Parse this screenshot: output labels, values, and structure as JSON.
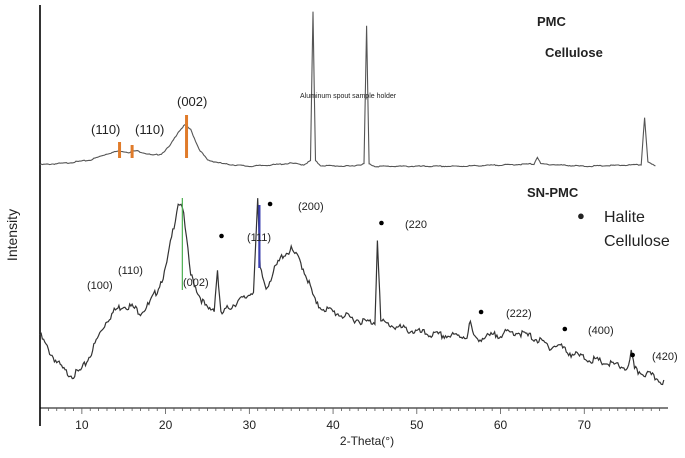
{
  "chart_data": {
    "type": "line",
    "xlabel": "2-Theta(°)",
    "ylabel": "Intensity",
    "xlim": [
      5,
      80
    ],
    "x_ticks": [
      10,
      20,
      30,
      40,
      50,
      60,
      70
    ],
    "series": [
      {
        "name": "PMC",
        "subtitle": "Cellulose",
        "points": [
          [
            5,
            -0.98
          ],
          [
            8,
            -0.96
          ],
          [
            11,
            -0.92
          ],
          [
            13,
            -0.84
          ],
          [
            14.5,
            -0.8
          ],
          [
            15,
            -0.81
          ],
          [
            15.6,
            -0.82
          ],
          [
            16.5,
            -0.8
          ],
          [
            17.5,
            -0.83
          ],
          [
            18.5,
            -0.86
          ],
          [
            19.5,
            -0.84
          ],
          [
            20.5,
            -0.74
          ],
          [
            21.5,
            -0.56
          ],
          [
            22.3,
            -0.47
          ],
          [
            23,
            -0.53
          ],
          [
            24,
            -0.78
          ],
          [
            25,
            -0.92
          ],
          [
            27,
            -0.97
          ],
          [
            30,
            -1.0
          ],
          [
            33,
            -0.98
          ],
          [
            35,
            -0.96
          ],
          [
            36.5,
            -0.98
          ],
          [
            37.3,
            -0.93
          ],
          [
            37.6,
            0.98
          ],
          [
            37.9,
            -0.93
          ],
          [
            38.5,
            -0.99
          ],
          [
            42,
            -1.0
          ],
          [
            43.7,
            -0.97
          ],
          [
            44,
            0.8
          ],
          [
            44.3,
            -0.97
          ],
          [
            45,
            -1.0
          ],
          [
            55,
            -1.0
          ],
          [
            64,
            -0.97
          ],
          [
            64.4,
            -0.88
          ],
          [
            64.8,
            -0.97
          ],
          [
            70,
            -1.0
          ],
          [
            76.8,
            -0.98
          ],
          [
            77.2,
            -0.37
          ],
          [
            77.6,
            -0.95
          ],
          [
            78.5,
            -1.0
          ]
        ],
        "peak_labels": [
          {
            "text": "(110)",
            "x": 14.5
          },
          {
            "text": "(110)",
            "x": 16.0
          },
          {
            "text": "(002)",
            "x": 22.5
          }
        ],
        "annotation": "Aluminum spout sample holder"
      },
      {
        "name": "SN-PMC",
        "points": [
          [
            5,
            -0.35
          ],
          [
            6,
            -0.5
          ],
          [
            7,
            -0.62
          ],
          [
            8,
            -0.72
          ],
          [
            9,
            -0.75
          ],
          [
            10,
            -0.7
          ],
          [
            11,
            -0.55
          ],
          [
            12,
            -0.36
          ],
          [
            13,
            -0.2
          ],
          [
            14,
            -0.1
          ],
          [
            15,
            -0.05
          ],
          [
            16,
            -0.07
          ],
          [
            17,
            -0.12
          ],
          [
            18,
            -0.05
          ],
          [
            19,
            0.1
          ],
          [
            20,
            0.3
          ],
          [
            21,
            0.75
          ],
          [
            21.5,
            0.98
          ],
          [
            22,
            0.95
          ],
          [
            22.5,
            0.6
          ],
          [
            23,
            0.25
          ],
          [
            24,
            0.05
          ],
          [
            25,
            -0.1
          ],
          [
            25.8,
            -0.08
          ],
          [
            26.2,
            0.3
          ],
          [
            26.6,
            -0.15
          ],
          [
            27.5,
            -0.08
          ],
          [
            28.5,
            -0.02
          ],
          [
            29.5,
            0.02
          ],
          [
            30.5,
            0.1
          ],
          [
            31,
            0.98
          ],
          [
            31.3,
            0.3
          ],
          [
            32,
            0.12
          ],
          [
            33,
            0.3
          ],
          [
            34,
            0.45
          ],
          [
            35,
            0.5
          ],
          [
            36,
            0.4
          ],
          [
            37,
            0.2
          ],
          [
            38,
            -0.05
          ],
          [
            40,
            -0.12
          ],
          [
            42,
            -0.18
          ],
          [
            44,
            -0.22
          ],
          [
            45,
            -0.22
          ],
          [
            45.3,
            0.62
          ],
          [
            45.7,
            -0.22
          ],
          [
            48,
            -0.28
          ],
          [
            50,
            -0.32
          ],
          [
            52,
            -0.35
          ],
          [
            54,
            -0.36
          ],
          [
            56,
            -0.36
          ],
          [
            56.4,
            -0.22
          ],
          [
            56.8,
            -0.38
          ],
          [
            58,
            -0.38
          ],
          [
            60,
            -0.34
          ],
          [
            62,
            -0.32
          ],
          [
            64,
            -0.38
          ],
          [
            66,
            -0.47
          ],
          [
            67,
            -0.45
          ],
          [
            68,
            -0.52
          ],
          [
            70,
            -0.58
          ],
          [
            72,
            -0.62
          ],
          [
            74,
            -0.66
          ],
          [
            75.3,
            -0.68
          ],
          [
            75.6,
            -0.52
          ],
          [
            76,
            -0.7
          ],
          [
            78,
            -0.76
          ],
          [
            79.5,
            -0.82
          ]
        ],
        "peak_labels": [
          {
            "text": "(100)",
            "x": 10
          },
          {
            "text": "(110)",
            "x": 15
          },
          {
            "text": "(002)",
            "x": 22
          },
          {
            "text": "(111)",
            "x": 31
          },
          {
            "text": "(200)",
            "x": 32.5
          },
          {
            "text": "(220",
            "x": 45.3
          },
          {
            "text": "(222)",
            "x": 57
          },
          {
            "text": "(400)",
            "x": 67
          },
          {
            "text": "(420)",
            "x": 75.5
          }
        ],
        "halite_markers_x": [
          26.2,
          32.0,
          45.3,
          57.2,
          67.2,
          75.3
        ]
      }
    ],
    "legend": [
      {
        "marker": "●",
        "label": "Halite"
      },
      {
        "marker": "",
        "label": "Cellulose"
      }
    ],
    "colors": {
      "line": "#555555",
      "cellulose_marker": "#e07b2a",
      "green_marker": "#4caf50",
      "blue_marker": "#3b3fb0"
    }
  }
}
